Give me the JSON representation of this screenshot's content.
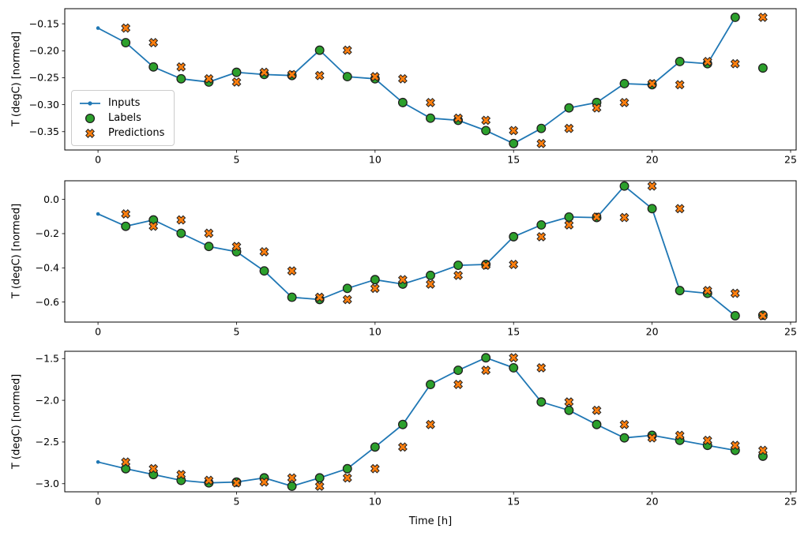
{
  "figure": {
    "background": "#ffffff",
    "xlabel": "Time [h]",
    "ylabel": "T (degC) [normed]"
  },
  "legend": {
    "items": [
      {
        "label": "Inputs",
        "marker": "line-dot",
        "color": "#1f77b4"
      },
      {
        "label": "Labels",
        "marker": "circle",
        "color": "#2ca02c"
      },
      {
        "label": "Predictions",
        "marker": "X",
        "color": "#ff7f0e"
      }
    ]
  },
  "colors": {
    "inputs": "#1f77b4",
    "labels": "#2ca02c",
    "predictions": "#ff7f0e",
    "marker_edge": "#1f1f1f",
    "axis": "#000000"
  },
  "chart_data": [
    {
      "type": "line",
      "title": "",
      "ylabel": "T (degC) [normed]",
      "xlim": [
        -1.2,
        25.2
      ],
      "ylim": [
        -0.384,
        -0.122
      ],
      "xticks": [
        0,
        5,
        10,
        15,
        20,
        25
      ],
      "xtick_labels": [
        "0",
        "5",
        "10",
        "15",
        "20",
        "25"
      ],
      "yticks": [
        -0.15,
        -0.2,
        -0.25,
        -0.3,
        -0.35
      ],
      "ytick_labels": [
        "−0.15",
        "−0.20",
        "−0.25",
        "−0.30",
        "−0.35"
      ],
      "grid": false,
      "legend_position": "center left",
      "series": [
        {
          "name": "Inputs",
          "type": "line",
          "marker": "dot",
          "x": [
            0,
            1,
            2,
            3,
            4,
            5,
            6,
            7,
            8,
            9,
            10,
            11,
            12,
            13,
            14,
            15,
            16,
            17,
            18,
            19,
            20,
            21,
            22,
            23
          ],
          "y": [
            -0.158,
            -0.185,
            -0.23,
            -0.252,
            -0.258,
            -0.24,
            -0.244,
            -0.246,
            -0.199,
            -0.248,
            -0.252,
            -0.296,
            -0.325,
            -0.329,
            -0.348,
            -0.372,
            -0.344,
            -0.306,
            -0.296,
            -0.261,
            -0.263,
            -0.22,
            -0.224,
            -0.138
          ]
        },
        {
          "name": "Labels",
          "type": "scatter",
          "marker": "circle",
          "x": [
            1,
            2,
            3,
            4,
            5,
            6,
            7,
            8,
            9,
            10,
            11,
            12,
            13,
            14,
            15,
            16,
            17,
            18,
            19,
            20,
            21,
            22,
            23,
            24
          ],
          "y": [
            -0.185,
            -0.23,
            -0.252,
            -0.258,
            -0.24,
            -0.244,
            -0.246,
            -0.199,
            -0.248,
            -0.252,
            -0.296,
            -0.325,
            -0.329,
            -0.348,
            -0.372,
            -0.344,
            -0.306,
            -0.296,
            -0.261,
            -0.263,
            -0.22,
            -0.224,
            -0.138,
            -0.232
          ]
        },
        {
          "name": "Predictions",
          "type": "scatter",
          "marker": "X",
          "x": [
            1,
            2,
            3,
            4,
            5,
            6,
            7,
            8,
            9,
            10,
            11,
            12,
            13,
            14,
            15,
            16,
            17,
            18,
            19,
            20,
            21,
            22,
            23,
            24
          ],
          "y": [
            -0.158,
            -0.185,
            -0.23,
            -0.252,
            -0.258,
            -0.24,
            -0.244,
            -0.246,
            -0.199,
            -0.248,
            -0.252,
            -0.296,
            -0.325,
            -0.329,
            -0.348,
            -0.372,
            -0.344,
            -0.306,
            -0.296,
            -0.261,
            -0.263,
            -0.22,
            -0.224,
            -0.138
          ]
        }
      ]
    },
    {
      "type": "line",
      "title": "",
      "ylabel": "T (degC) [normed]",
      "xlim": [
        -1.2,
        25.2
      ],
      "ylim": [
        -0.717,
        0.109
      ],
      "xticks": [
        0,
        5,
        10,
        15,
        20,
        25
      ],
      "xtick_labels": [
        "0",
        "5",
        "10",
        "15",
        "20",
        "25"
      ],
      "yticks": [
        0.0,
        -0.2,
        -0.4,
        -0.6
      ],
      "ytick_labels": [
        "0.0",
        "−0.2",
        "−0.4",
        "−0.6"
      ],
      "grid": false,
      "series": [
        {
          "name": "Inputs",
          "type": "line",
          "marker": "dot",
          "x": [
            0,
            1,
            2,
            3,
            4,
            5,
            6,
            7,
            8,
            9,
            10,
            11,
            12,
            13,
            14,
            15,
            16,
            17,
            18,
            19,
            20,
            21,
            22,
            23
          ],
          "y": [
            -0.085,
            -0.157,
            -0.12,
            -0.198,
            -0.275,
            -0.306,
            -0.418,
            -0.572,
            -0.585,
            -0.52,
            -0.469,
            -0.495,
            -0.444,
            -0.385,
            -0.38,
            -0.218,
            -0.149,
            -0.103,
            -0.106,
            0.078,
            -0.054,
            -0.533,
            -0.549,
            -0.68
          ]
        },
        {
          "name": "Labels",
          "type": "scatter",
          "marker": "circle",
          "x": [
            1,
            2,
            3,
            4,
            5,
            6,
            7,
            8,
            9,
            10,
            11,
            12,
            13,
            14,
            15,
            16,
            17,
            18,
            19,
            20,
            21,
            22,
            23,
            24
          ],
          "y": [
            -0.157,
            -0.12,
            -0.198,
            -0.275,
            -0.306,
            -0.418,
            -0.572,
            -0.585,
            -0.52,
            -0.469,
            -0.495,
            -0.444,
            -0.385,
            -0.38,
            -0.218,
            -0.149,
            -0.103,
            -0.106,
            0.078,
            -0.054,
            -0.533,
            -0.549,
            -0.68,
            -0.677
          ]
        },
        {
          "name": "Predictions",
          "type": "scatter",
          "marker": "X",
          "x": [
            1,
            2,
            3,
            4,
            5,
            6,
            7,
            8,
            9,
            10,
            11,
            12,
            13,
            14,
            15,
            16,
            17,
            18,
            19,
            20,
            21,
            22,
            23,
            24
          ],
          "y": [
            -0.085,
            -0.157,
            -0.12,
            -0.198,
            -0.275,
            -0.306,
            -0.418,
            -0.572,
            -0.585,
            -0.52,
            -0.469,
            -0.495,
            -0.444,
            -0.385,
            -0.38,
            -0.218,
            -0.149,
            -0.103,
            -0.106,
            0.078,
            -0.054,
            -0.533,
            -0.549,
            -0.68
          ]
        }
      ]
    },
    {
      "type": "line",
      "title": "",
      "xlabel": "Time [h]",
      "ylabel": "T (degC) [normed]",
      "xlim": [
        -1.2,
        25.2
      ],
      "ylim": [
        -3.097,
        -1.412
      ],
      "xticks": [
        0,
        5,
        10,
        15,
        20,
        25
      ],
      "xtick_labels": [
        "0",
        "5",
        "10",
        "15",
        "20",
        "25"
      ],
      "yticks": [
        -1.5,
        -2.0,
        -2.5,
        -3.0
      ],
      "ytick_labels": [
        "−1.5",
        "−2.0",
        "−2.5",
        "−3.0"
      ],
      "grid": false,
      "series": [
        {
          "name": "Inputs",
          "type": "line",
          "marker": "dot",
          "x": [
            0,
            1,
            2,
            3,
            4,
            5,
            6,
            7,
            8,
            9,
            10,
            11,
            12,
            13,
            14,
            15,
            16,
            17,
            18,
            19,
            20,
            21,
            22,
            23
          ],
          "y": [
            -2.74,
            -2.82,
            -2.89,
            -2.96,
            -2.99,
            -2.98,
            -2.93,
            -3.03,
            -2.93,
            -2.82,
            -2.56,
            -2.29,
            -1.81,
            -1.64,
            -1.49,
            -1.61,
            -2.02,
            -2.12,
            -2.29,
            -2.45,
            -2.42,
            -2.48,
            -2.54,
            -2.6
          ]
        },
        {
          "name": "Labels",
          "type": "scatter",
          "marker": "circle",
          "x": [
            1,
            2,
            3,
            4,
            5,
            6,
            7,
            8,
            9,
            10,
            11,
            12,
            13,
            14,
            15,
            16,
            17,
            18,
            19,
            20,
            21,
            22,
            23,
            24
          ],
          "y": [
            -2.82,
            -2.89,
            -2.96,
            -2.99,
            -2.98,
            -2.93,
            -3.03,
            -2.93,
            -2.82,
            -2.56,
            -2.29,
            -1.81,
            -1.64,
            -1.49,
            -1.61,
            -2.02,
            -2.12,
            -2.29,
            -2.45,
            -2.42,
            -2.48,
            -2.54,
            -2.6,
            -2.67
          ]
        },
        {
          "name": "Predictions",
          "type": "scatter",
          "marker": "X",
          "x": [
            1,
            2,
            3,
            4,
            5,
            6,
            7,
            8,
            9,
            10,
            11,
            12,
            13,
            14,
            15,
            16,
            17,
            18,
            19,
            20,
            21,
            22,
            23,
            24
          ],
          "y": [
            -2.74,
            -2.82,
            -2.89,
            -2.96,
            -2.99,
            -2.98,
            -2.93,
            -3.03,
            -2.93,
            -2.82,
            -2.56,
            -2.29,
            -1.81,
            -1.64,
            -1.49,
            -1.61,
            -2.02,
            -2.12,
            -2.29,
            -2.45,
            -2.42,
            -2.48,
            -2.54,
            -2.6
          ]
        }
      ]
    }
  ]
}
